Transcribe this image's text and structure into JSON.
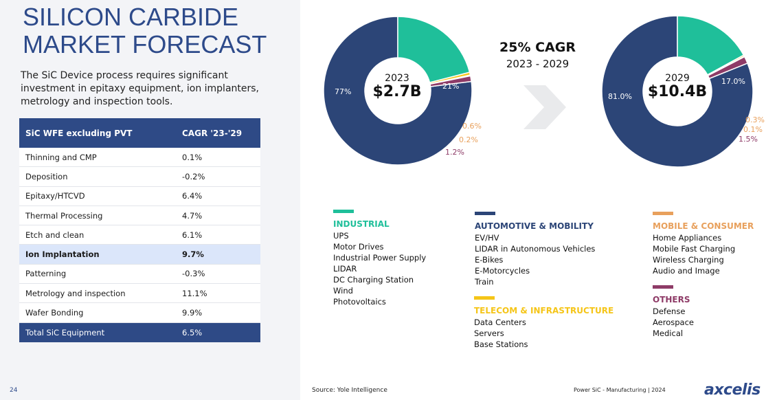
{
  "page": {
    "title_line1": "SILICON CARBIDE",
    "title_line2": "MARKET FORECAST",
    "subtitle": "The SiC Device process requires significant investment in epitaxy equipment, ion implanters, metrology and inspection tools.",
    "page_number": "24",
    "source": "Source: Yole Intelligence",
    "footer_label": "Power SiC - Manufacturing | 2024",
    "logo": "axcelis"
  },
  "table": {
    "header": [
      "SiC WFE excluding PVT",
      "CAGR '23-'29"
    ],
    "rows": [
      {
        "name": "Thinning and CMP",
        "cagr": "0.1%"
      },
      {
        "name": "Deposition",
        "cagr": "-0.2%"
      },
      {
        "name": "Epitaxy/HTCVD",
        "cagr": "6.4%"
      },
      {
        "name": "Thermal Processing",
        "cagr": "4.7%"
      },
      {
        "name": "Etch and clean",
        "cagr": "6.1%"
      },
      {
        "name": "Ion Implantation",
        "cagr": "9.7%"
      },
      {
        "name": "Patterning",
        "cagr": "-0.3%"
      },
      {
        "name": "Metrology and inspection",
        "cagr": "11.1%"
      },
      {
        "name": "Wafer Bonding",
        "cagr": "9.9%"
      }
    ],
    "total": {
      "name": "Total SiC Equipment",
      "cagr": "6.5%"
    }
  },
  "cagr": {
    "main": "25% CAGR",
    "range": "2023 - 2029"
  },
  "colors": {
    "automotive": "#2c4577",
    "industrial": "#1fbf9a",
    "telecom": "#f5c518",
    "mobile": "#e8a05c",
    "others": "#8e3b67",
    "table_header": "#2e4a86",
    "title": "#2d4a8a"
  },
  "chart_data": [
    {
      "type": "pie",
      "year": "2023",
      "total": "$2.7B",
      "labels": [
        "77%",
        "21%",
        "0.6%",
        "0.2%",
        "1.2%"
      ],
      "slices": [
        {
          "series": "automotive",
          "value": 77
        },
        {
          "series": "industrial",
          "value": 21
        },
        {
          "series": "telecom",
          "value": 0.6
        },
        {
          "series": "mobile",
          "value": 0.2
        },
        {
          "series": "others",
          "value": 1.2
        }
      ]
    },
    {
      "type": "pie",
      "year": "2029",
      "total": "$10.4B",
      "labels": [
        "81.0%",
        "17.0%",
        "0.3%",
        "0.1%",
        "1.5%"
      ],
      "slices": [
        {
          "series": "automotive",
          "value": 81.0
        },
        {
          "series": "industrial",
          "value": 17.0
        },
        {
          "series": "telecom",
          "value": 0.3
        },
        {
          "series": "mobile",
          "value": 0.1
        },
        {
          "series": "others",
          "value": 1.5
        }
      ]
    }
  ],
  "legend": {
    "industrial": {
      "title": "INDUSTRIAL",
      "items": [
        "UPS",
        "Motor Drives",
        "Industrial Power Supply",
        "LIDAR",
        "DC Charging Station",
        "Wind",
        "Photovoltaics"
      ]
    },
    "automotive": {
      "title": "AUTOMOTIVE & MOBILITY",
      "items": [
        "EV/HV",
        "LIDAR in Autonomous Vehicles",
        "E-Bikes",
        "E-Motorcycles",
        "Train"
      ]
    },
    "telecom": {
      "title": "TELECOM & INFRASTRUCTURE",
      "items": [
        "Data Centers",
        "Servers",
        "Base Stations"
      ]
    },
    "mobile": {
      "title": "MOBILE & CONSUMER",
      "items": [
        "Home Appliances",
        "Mobile Fast Charging",
        "Wireless Charging",
        "Audio and Image"
      ]
    },
    "others": {
      "title": "OTHERS",
      "items": [
        "Defense",
        "Aerospace",
        "Medical"
      ]
    }
  }
}
